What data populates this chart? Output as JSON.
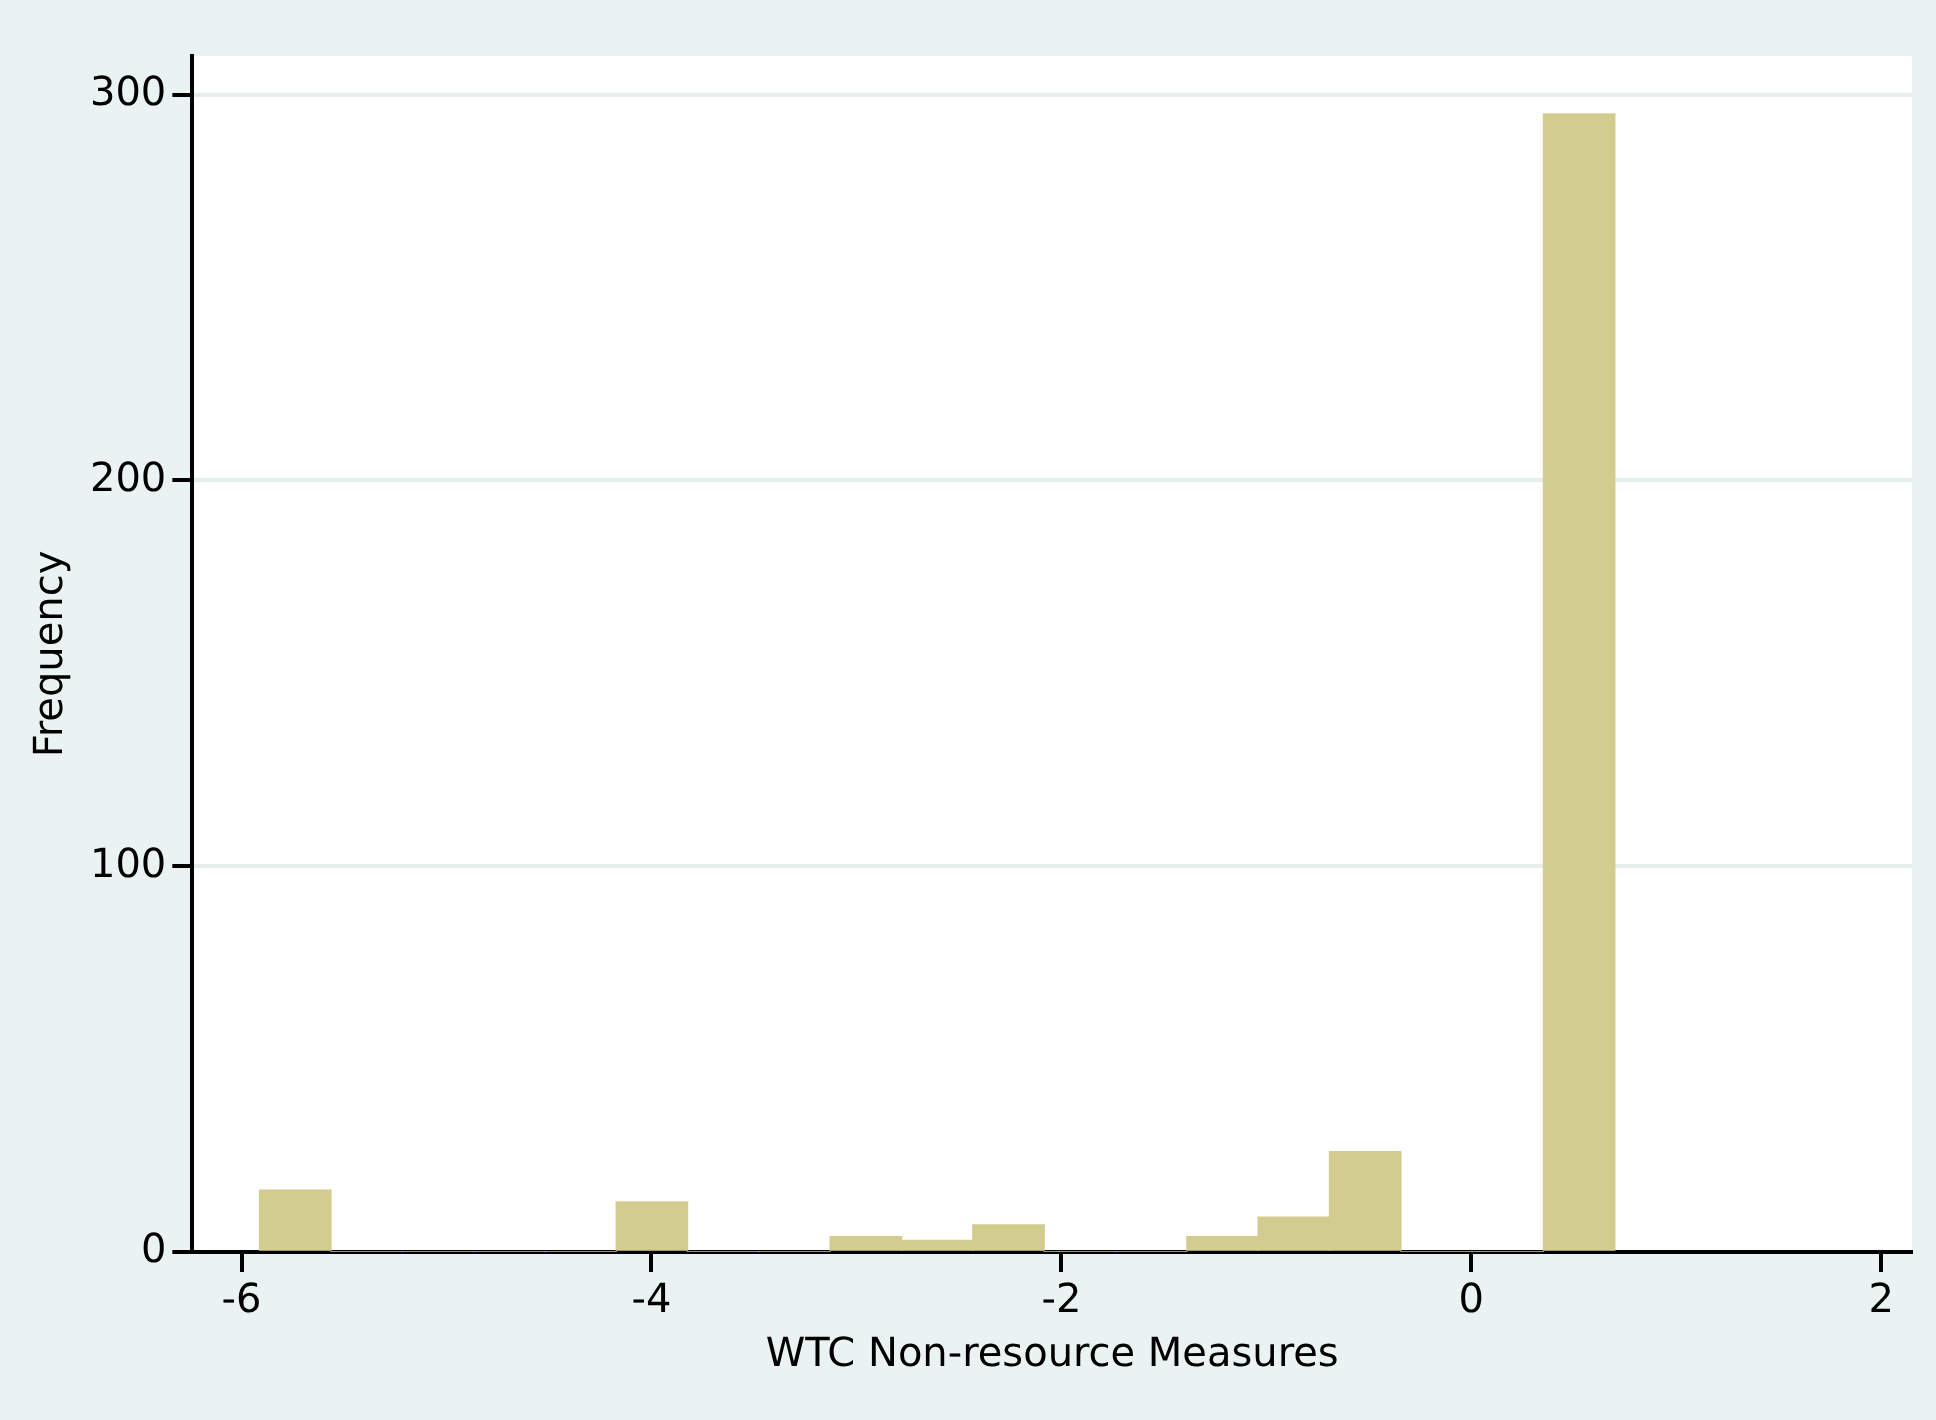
{
  "chart_data": {
    "type": "histogram",
    "xlabel": "WTC Non-resource Measures",
    "ylabel": "Frequency",
    "bins": [
      -5.912,
      -5.564,
      -5.216,
      -4.868,
      -4.52,
      -4.172,
      -3.824,
      -3.476,
      -3.128,
      -2.78,
      -2.432,
      -2.084,
      -1.736,
      -1.388,
      -1.04,
      -0.692,
      -0.344,
      0.004,
      0.352,
      0.7
    ],
    "values": [
      16,
      0,
      0,
      0,
      0,
      13,
      0,
      0,
      4,
      3,
      7,
      0,
      0,
      4,
      9,
      26,
      0,
      0,
      295
    ],
    "color": "#d2cc8e",
    "xlim": [
      -6.24,
      2.15
    ],
    "xticks": [
      -6,
      -4,
      -2,
      0,
      2
    ],
    "ylim": [
      0,
      310
    ],
    "yticks": [
      0,
      100,
      200,
      300
    ],
    "grid": "y",
    "legend": false
  }
}
